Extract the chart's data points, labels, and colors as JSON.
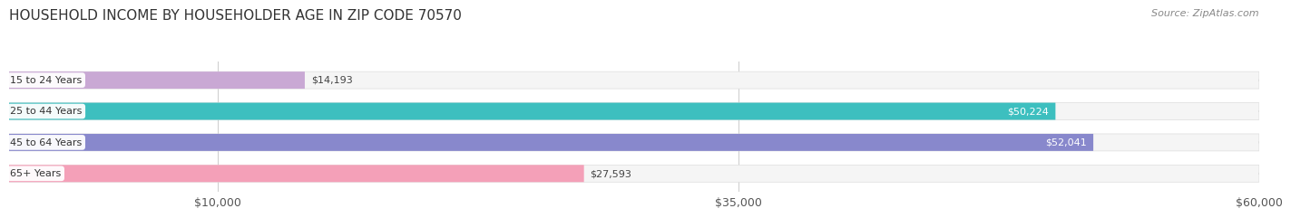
{
  "title": "HOUSEHOLD INCOME BY HOUSEHOLDER AGE IN ZIP CODE 70570",
  "source": "Source: ZipAtlas.com",
  "categories": [
    "15 to 24 Years",
    "25 to 44 Years",
    "45 to 64 Years",
    "65+ Years"
  ],
  "values": [
    14193,
    50224,
    52041,
    27593
  ],
  "bar_colors": [
    "#c9a8d4",
    "#3dbfbf",
    "#8888cc",
    "#f4a0b8"
  ],
  "bar_bg_color": "#f0f0f0",
  "label_colors": [
    "#555555",
    "#ffffff",
    "#ffffff",
    "#555555"
  ],
  "xlim": [
    0,
    60000
  ],
  "xticks": [
    10000,
    35000,
    60000
  ],
  "xtick_labels": [
    "$10,000",
    "$35,000",
    "$60,000"
  ],
  "background_color": "#ffffff",
  "bar_height": 0.55,
  "title_fontsize": 11,
  "source_fontsize": 8,
  "label_fontsize": 8,
  "tick_fontsize": 9
}
